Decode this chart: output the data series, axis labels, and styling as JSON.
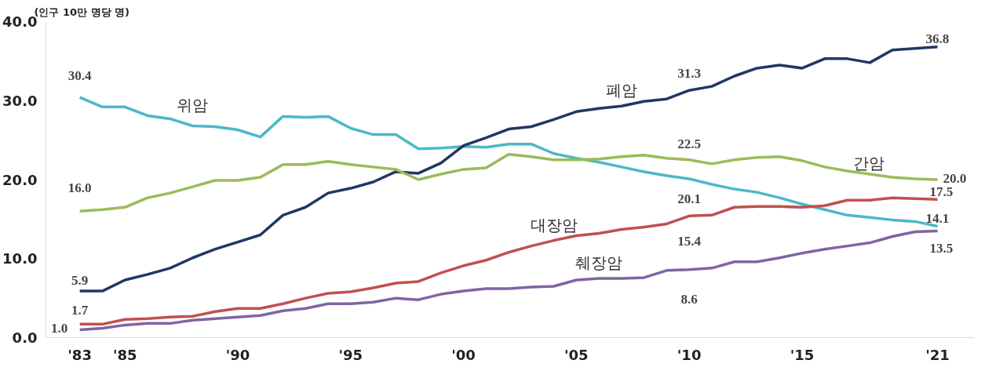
{
  "chart_data": {
    "type": "line",
    "ylabel": "(인구 10만 명당 명)",
    "x": [
      1983,
      1984,
      1985,
      1986,
      1987,
      1988,
      1989,
      1990,
      1991,
      1992,
      1993,
      1994,
      1995,
      1996,
      1997,
      1998,
      1999,
      2000,
      2001,
      2002,
      2003,
      2004,
      2005,
      2006,
      2007,
      2008,
      2009,
      2010,
      2011,
      2012,
      2013,
      2014,
      2015,
      2016,
      2017,
      2018,
      2019,
      2020,
      2021
    ],
    "xlim": [
      1981.5,
      2022.6
    ],
    "xticks": [
      {
        "value": 1983,
        "label": "'83"
      },
      {
        "value": 1985,
        "label": "'85"
      },
      {
        "value": 1990,
        "label": "'90"
      },
      {
        "value": 1995,
        "label": "'95"
      },
      {
        "value": 2000,
        "label": "'00"
      },
      {
        "value": 2005,
        "label": "'05"
      },
      {
        "value": 2010,
        "label": "'10"
      },
      {
        "value": 2015,
        "label": "'15"
      },
      {
        "value": 2021,
        "label": "'21"
      }
    ],
    "ylim": [
      0,
      40
    ],
    "yticks": [
      {
        "value": 0,
        "label": "0.0"
      },
      {
        "value": 10,
        "label": "10.0"
      },
      {
        "value": 20,
        "label": "20.0"
      },
      {
        "value": 30,
        "label": "30.0"
      },
      {
        "value": 40,
        "label": "40.0"
      }
    ],
    "grid": false,
    "legend": false,
    "marker": "none",
    "line_style": "solid",
    "series": [
      {
        "name": "위암",
        "color": "#4bb8c8",
        "values": [
          30.4,
          29.2,
          29.2,
          28.1,
          27.7,
          26.8,
          26.7,
          26.3,
          25.4,
          28.0,
          27.9,
          28.0,
          26.5,
          25.7,
          25.7,
          23.9,
          24.0,
          24.2,
          24.1,
          24.5,
          24.5,
          23.3,
          22.7,
          22.2,
          21.6,
          21.0,
          20.5,
          20.1,
          19.4,
          18.8,
          18.4,
          17.7,
          16.9,
          16.2,
          15.5,
          15.2,
          14.9,
          14.7,
          14.1
        ],
        "value_labels": [
          "30.4",
          null,
          null,
          null,
          null,
          null,
          null,
          null,
          null,
          null,
          null,
          null,
          null,
          null,
          null,
          null,
          null,
          null,
          null,
          null,
          null,
          null,
          null,
          null,
          null,
          null,
          null,
          "20.1",
          null,
          null,
          null,
          null,
          null,
          null,
          null,
          null,
          null,
          null,
          "14.1"
        ]
      },
      {
        "name": "폐암",
        "color": "#1f3864",
        "values": [
          5.9,
          5.9,
          7.3,
          8.0,
          8.8,
          10.1,
          11.2,
          12.1,
          13.0,
          15.5,
          16.5,
          18.3,
          18.9,
          19.7,
          21.0,
          20.8,
          22.1,
          24.3,
          25.3,
          26.4,
          26.7,
          27.6,
          28.6,
          29.0,
          29.3,
          29.9,
          30.2,
          31.3,
          31.8,
          33.1,
          34.1,
          34.5,
          34.1,
          35.3,
          35.3,
          34.8,
          36.4,
          36.6,
          36.8
        ],
        "value_labels": [
          "5.9",
          null,
          null,
          null,
          null,
          null,
          null,
          null,
          null,
          null,
          null,
          null,
          null,
          null,
          null,
          null,
          null,
          null,
          null,
          null,
          null,
          null,
          null,
          null,
          null,
          null,
          null,
          "31.3",
          null,
          null,
          null,
          null,
          null,
          null,
          null,
          null,
          null,
          null,
          "36.8"
        ]
      },
      {
        "name": "간암",
        "color": "#9bbb59",
        "values": [
          16.0,
          16.2,
          16.5,
          17.7,
          18.3,
          19.1,
          19.9,
          19.9,
          20.3,
          21.9,
          21.9,
          22.3,
          21.9,
          21.6,
          21.3,
          20.0,
          20.7,
          21.3,
          21.5,
          23.2,
          22.9,
          22.5,
          22.5,
          22.6,
          22.9,
          23.1,
          22.7,
          22.5,
          22.0,
          22.5,
          22.8,
          22.9,
          22.4,
          21.6,
          21.1,
          20.7,
          20.3,
          20.1,
          20.0
        ],
        "value_labels": [
          "16.0",
          null,
          null,
          null,
          null,
          null,
          null,
          null,
          null,
          null,
          null,
          null,
          null,
          null,
          null,
          null,
          null,
          null,
          null,
          null,
          null,
          null,
          null,
          null,
          null,
          null,
          null,
          "22.5",
          null,
          null,
          null,
          null,
          null,
          null,
          null,
          null,
          null,
          null,
          "20.0"
        ]
      },
      {
        "name": "대장암",
        "color": "#c0504d",
        "values": [
          1.7,
          1.7,
          2.3,
          2.4,
          2.6,
          2.7,
          3.3,
          3.7,
          3.7,
          4.3,
          5.0,
          5.6,
          5.8,
          6.3,
          6.9,
          7.1,
          8.2,
          9.1,
          9.8,
          10.8,
          11.6,
          12.3,
          12.9,
          13.2,
          13.7,
          14.0,
          14.4,
          15.4,
          15.5,
          16.5,
          16.6,
          16.6,
          16.5,
          16.7,
          17.4,
          17.4,
          17.7,
          17.6,
          17.5
        ],
        "value_labels": [
          "1.7",
          null,
          null,
          null,
          null,
          null,
          null,
          null,
          null,
          null,
          null,
          null,
          null,
          null,
          null,
          null,
          null,
          null,
          null,
          null,
          null,
          null,
          null,
          null,
          null,
          null,
          null,
          "15.4",
          null,
          null,
          null,
          null,
          null,
          null,
          null,
          null,
          null,
          null,
          "17.5"
        ]
      },
      {
        "name": "췌장암",
        "color": "#8064a2",
        "values": [
          1.0,
          1.2,
          1.6,
          1.8,
          1.8,
          2.2,
          2.4,
          2.6,
          2.8,
          3.4,
          3.7,
          4.3,
          4.3,
          4.5,
          5.0,
          4.8,
          5.5,
          5.9,
          6.2,
          6.2,
          6.4,
          6.5,
          7.3,
          7.5,
          7.5,
          7.6,
          8.5,
          8.6,
          8.8,
          9.6,
          9.6,
          10.1,
          10.7,
          11.2,
          11.6,
          12.0,
          12.8,
          13.4,
          13.5
        ],
        "value_labels": [
          "1.0",
          null,
          null,
          null,
          null,
          null,
          null,
          null,
          null,
          null,
          null,
          null,
          null,
          null,
          null,
          null,
          null,
          null,
          null,
          null,
          null,
          null,
          null,
          null,
          null,
          null,
          null,
          "8.6",
          null,
          null,
          null,
          null,
          null,
          null,
          null,
          null,
          null,
          null,
          "13.5"
        ]
      }
    ]
  }
}
